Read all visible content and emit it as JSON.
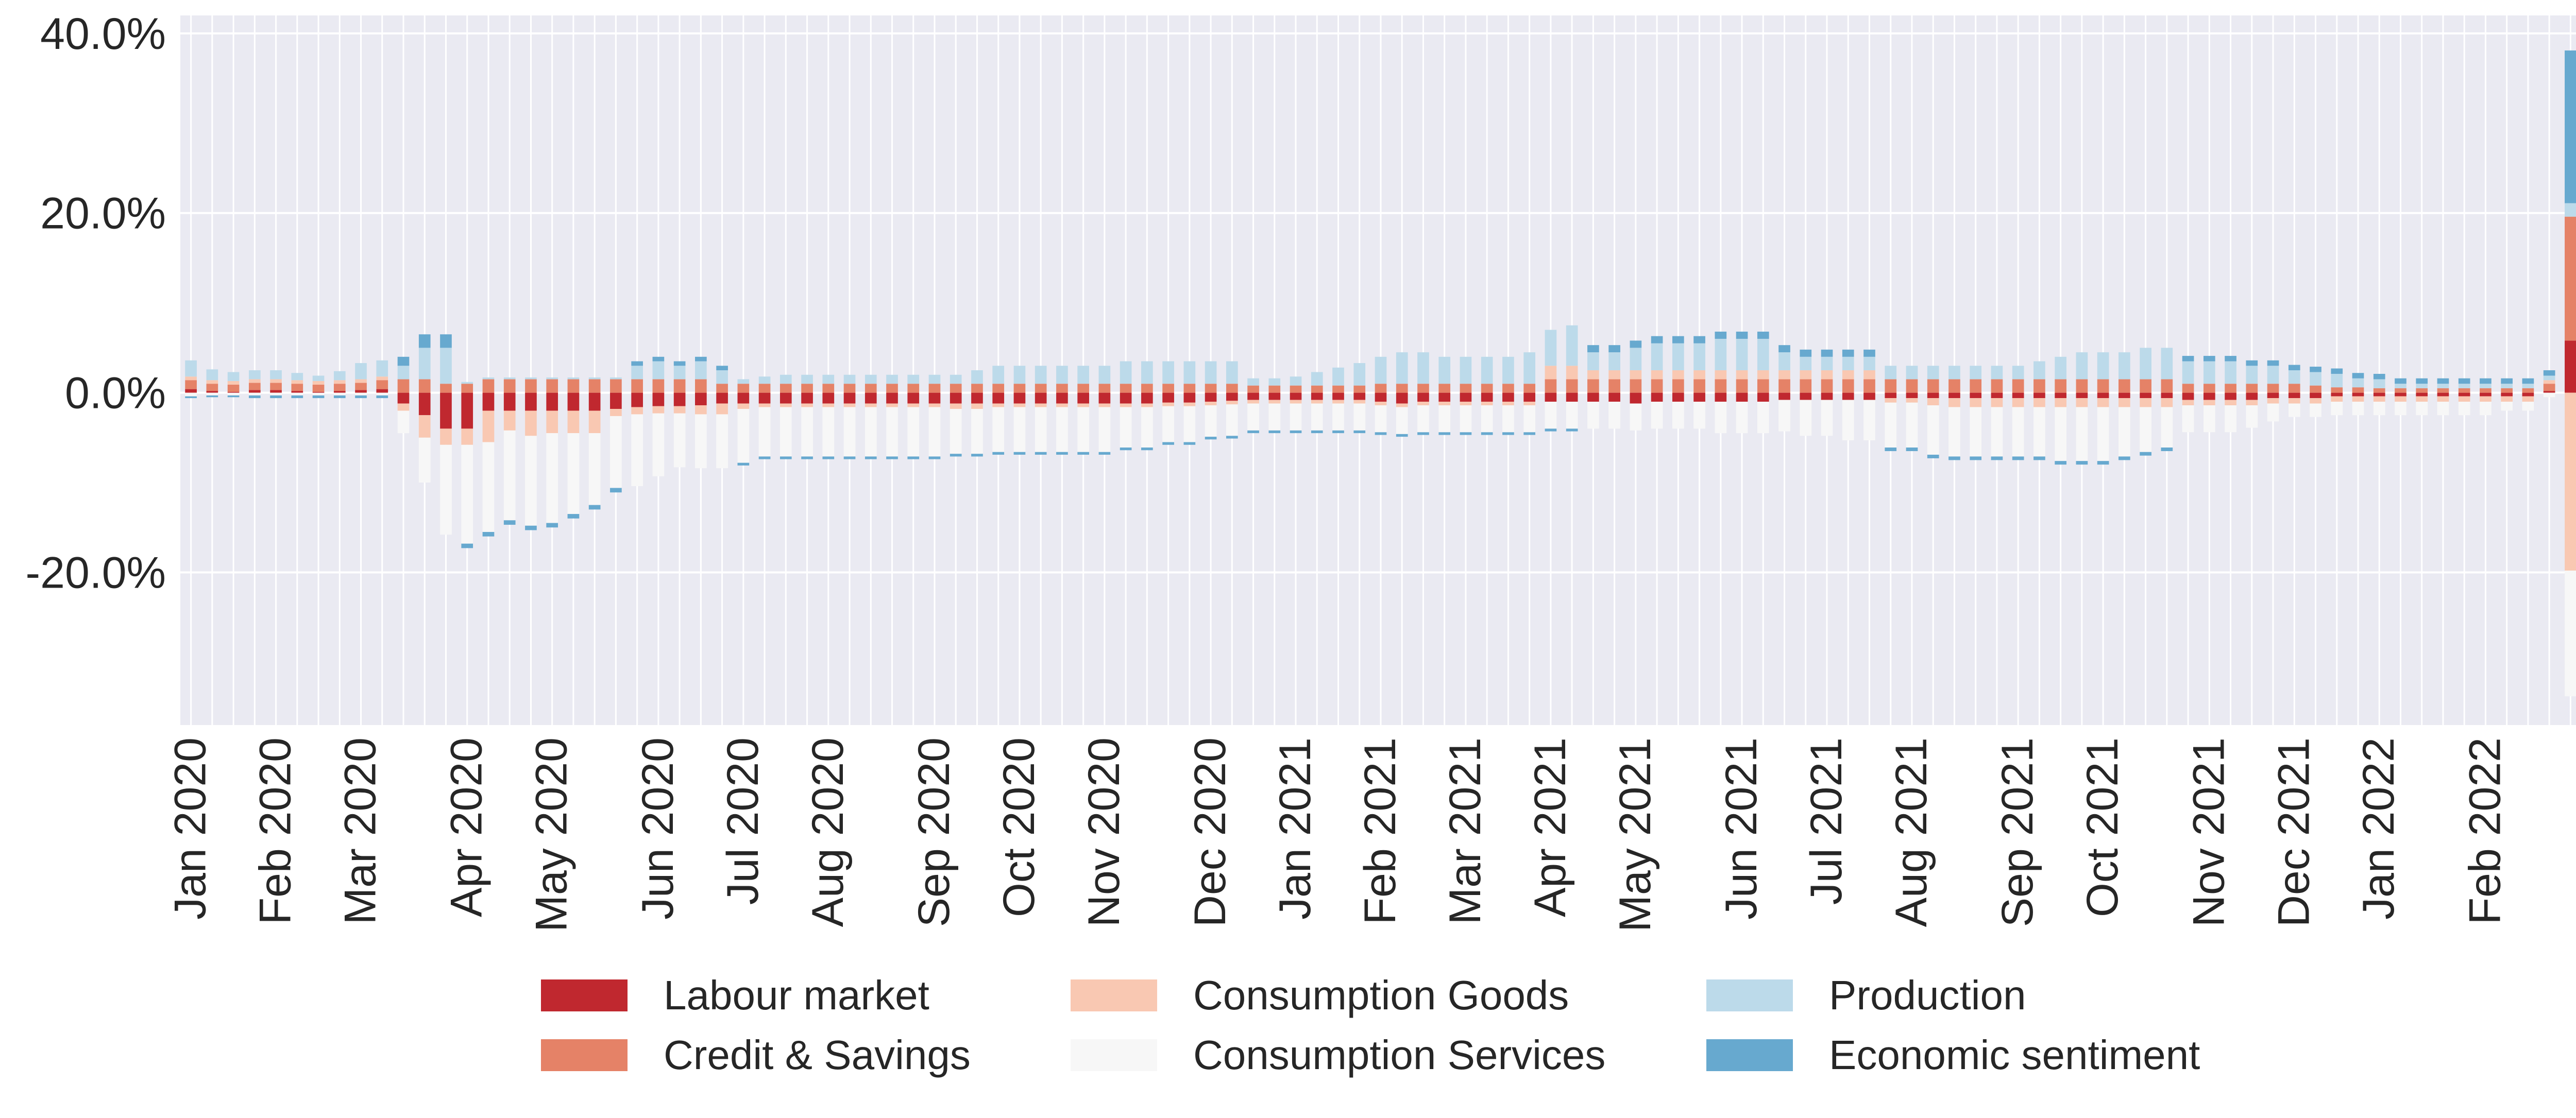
{
  "chart_data": {
    "type": "bar",
    "stacked": true,
    "title": "",
    "xlabel": "",
    "ylabel": "",
    "ylim": [
      -37,
      42
    ],
    "yticks": [
      -20,
      0,
      20,
      40
    ],
    "ytick_labels": [
      "-20.0%",
      "0.0%",
      "20.0%",
      "40.0%"
    ],
    "grid": true,
    "legend_position": "bottom",
    "period_labels": [
      "Jan 2020",
      "Feb 2020",
      "Mar 2020",
      "Apr 2020",
      "May 2020",
      "Jun 2020",
      "Jul 2020",
      "Aug 2020",
      "Sep 2020",
      "Oct 2020",
      "Nov 2020",
      "Dec 2020",
      "Jan 2021",
      "Feb 2021",
      "Mar 2021",
      "Apr 2021",
      "May 2021",
      "Jun 2021",
      "Jul 2021",
      "Aug 2021",
      "Sep 2021",
      "Oct 2021",
      "Nov 2021",
      "Dec 2021",
      "Jan 2022",
      "Feb 2022"
    ],
    "period_start_index": [
      0,
      4,
      8,
      13,
      17,
      22,
      26,
      30,
      35,
      39,
      43,
      48,
      52,
      56,
      60,
      64,
      68,
      73,
      77,
      81,
      86,
      90,
      95,
      99,
      103,
      108
    ],
    "series": [
      {
        "name": "Labour market",
        "color": "#c0282f",
        "values": [
          0.4,
          0.2,
          0.1,
          0.3,
          0.3,
          0.2,
          0.1,
          0.2,
          0.3,
          0.4,
          -1.2,
          -2.5,
          -4.0,
          -4.0,
          -2.0,
          -2.0,
          -2.0,
          -2.0,
          -2.0,
          -2.0,
          -1.8,
          -1.6,
          -1.5,
          -1.5,
          -1.4,
          -1.2,
          -1.2,
          -1.2,
          -1.2,
          -1.2,
          -1.2,
          -1.2,
          -1.2,
          -1.2,
          -1.2,
          -1.2,
          -1.2,
          -1.2,
          -1.2,
          -1.2,
          -1.2,
          -1.2,
          -1.2,
          -1.2,
          -1.2,
          -1.2,
          -1.1,
          -1.1,
          -1.0,
          -0.9,
          -0.8,
          -0.8,
          -0.8,
          -0.8,
          -0.8,
          -0.8,
          -1.0,
          -1.2,
          -1.0,
          -1.0,
          -1.0,
          -1.0,
          -1.0,
          -1.0,
          -1.0,
          -1.0,
          -1.0,
          -1.0,
          -1.2,
          -1.0,
          -1.0,
          -1.0,
          -1.0,
          -1.0,
          -1.0,
          -0.8,
          -0.8,
          -0.8,
          -0.8,
          -0.8,
          -0.6,
          -0.6,
          -0.6,
          -0.6,
          -0.6,
          -0.6,
          -0.6,
          -0.6,
          -0.6,
          -0.6,
          -0.6,
          -0.6,
          -0.6,
          -0.6,
          -0.8,
          -0.8,
          -0.8,
          -0.8,
          -0.6,
          -0.6,
          -0.6,
          -0.4,
          -0.4,
          -0.4,
          -0.4,
          -0.4,
          -0.4,
          -0.4,
          -0.4,
          -0.4,
          -0.4,
          0.2,
          5.8
        ]
      },
      {
        "name": "Credit & Savings",
        "color": "#e58267",
        "values": [
          1.0,
          0.8,
          0.8,
          0.8,
          0.8,
          0.8,
          0.8,
          0.8,
          0.8,
          1.0,
          1.5,
          1.5,
          1.0,
          1.0,
          1.5,
          1.5,
          1.5,
          1.5,
          1.5,
          1.5,
          1.5,
          1.5,
          1.5,
          1.5,
          1.5,
          1.0,
          1.0,
          1.0,
          1.0,
          1.0,
          1.0,
          1.0,
          1.0,
          1.0,
          1.0,
          1.0,
          1.0,
          1.0,
          1.0,
          1.0,
          1.0,
          1.0,
          1.0,
          1.0,
          1.0,
          1.0,
          1.0,
          1.0,
          1.0,
          1.0,
          0.8,
          0.8,
          0.8,
          0.8,
          0.8,
          0.8,
          1.0,
          1.0,
          1.0,
          1.0,
          1.0,
          1.0,
          1.0,
          1.0,
          1.5,
          1.5,
          1.5,
          1.5,
          1.5,
          1.5,
          1.5,
          1.5,
          1.5,
          1.5,
          1.5,
          1.5,
          1.5,
          1.5,
          1.5,
          1.5,
          1.5,
          1.5,
          1.5,
          1.5,
          1.5,
          1.5,
          1.5,
          1.5,
          1.5,
          1.5,
          1.5,
          1.5,
          1.5,
          1.5,
          1.0,
          1.0,
          1.0,
          1.0,
          1.0,
          1.0,
          0.8,
          0.6,
          0.6,
          0.5,
          0.5,
          0.5,
          0.5,
          0.5,
          0.5,
          0.5,
          0.5,
          0.8,
          13.8
        ]
      },
      {
        "name": "Consumption Goods",
        "color": "#f9c8b2",
        "values": [
          0.4,
          0.4,
          0.4,
          0.4,
          0.4,
          0.4,
          0.4,
          0.4,
          0.4,
          0.4,
          -0.8,
          -2.5,
          -1.8,
          -1.8,
          -3.5,
          -2.2,
          -2.8,
          -2.5,
          -2.5,
          -2.5,
          -0.8,
          -0.8,
          -0.8,
          -0.8,
          -1.0,
          -1.2,
          -0.6,
          -0.4,
          -0.4,
          -0.4,
          -0.4,
          -0.4,
          -0.4,
          -0.4,
          -0.4,
          -0.4,
          -0.6,
          -0.6,
          -0.4,
          -0.4,
          -0.4,
          -0.4,
          -0.4,
          -0.4,
          -0.4,
          -0.4,
          -0.4,
          -0.4,
          -0.4,
          -0.4,
          -0.4,
          -0.4,
          -0.4,
          -0.4,
          -0.4,
          -0.4,
          -0.4,
          -0.4,
          -0.4,
          -0.4,
          -0.4,
          -0.4,
          -0.4,
          -0.4,
          1.5,
          1.5,
          1.0,
          1.0,
          1.0,
          1.0,
          1.0,
          1.0,
          1.0,
          1.0,
          1.0,
          1.0,
          1.0,
          1.0,
          1.0,
          1.0,
          -0.5,
          -0.5,
          -0.8,
          -1.0,
          -1.0,
          -1.0,
          -1.0,
          -1.0,
          -1.0,
          -1.0,
          -1.0,
          -1.0,
          -1.0,
          -1.0,
          -0.6,
          -0.6,
          -0.6,
          -0.6,
          -0.6,
          -0.6,
          -0.6,
          -0.6,
          -0.6,
          -0.6,
          -0.6,
          -0.6,
          -0.6,
          -0.6,
          -0.6,
          -0.6,
          -0.6,
          0.4,
          -19.8
        ]
      },
      {
        "name": "Consumption Services",
        "color": "#f7f7f7",
        "values": [
          -0.4,
          -0.3,
          -0.3,
          -0.3,
          -0.3,
          -0.3,
          -0.3,
          -0.3,
          -0.3,
          -0.3,
          -2.5,
          -5.0,
          -10.0,
          -11.0,
          -10.0,
          -10.0,
          -10.0,
          -10.0,
          -9.0,
          -8.0,
          -8.0,
          -8.0,
          -7.0,
          -6.0,
          -6.0,
          -6.0,
          -6.0,
          -5.5,
          -5.5,
          -5.5,
          -5.5,
          -5.5,
          -5.5,
          -5.5,
          -5.5,
          -5.5,
          -5.0,
          -5.0,
          -5.0,
          -5.0,
          -5.0,
          -5.0,
          -5.0,
          -5.0,
          -4.5,
          -4.5,
          -4.0,
          -4.0,
          -3.5,
          -3.5,
          -3.0,
          -3.0,
          -3.0,
          -3.0,
          -3.0,
          -3.0,
          -3.0,
          -3.0,
          -3.0,
          -3.0,
          -3.0,
          -3.0,
          -3.0,
          -3.0,
          -3.0,
          -3.0,
          -3.0,
          -3.0,
          -3.0,
          -3.0,
          -3.0,
          -3.0,
          -3.5,
          -3.5,
          -3.5,
          -3.5,
          -4.0,
          -4.0,
          -4.5,
          -4.5,
          -5.0,
          -5.0,
          -5.5,
          -5.5,
          -5.5,
          -5.5,
          -5.5,
          -5.5,
          -6.0,
          -6.0,
          -6.0,
          -5.5,
          -5.0,
          -4.5,
          -3.0,
          -3.0,
          -3.0,
          -2.5,
          -2.0,
          -1.5,
          -1.5,
          -1.5,
          -1.5,
          -1.5,
          -1.5,
          -1.5,
          -1.5,
          -1.5,
          -1.5,
          -1.0,
          -1.0,
          -0.5,
          -14.0
        ]
      },
      {
        "name": "Production",
        "color": "#bcdaea",
        "values": [
          1.8,
          1.2,
          1.0,
          1.0,
          1.0,
          0.8,
          0.6,
          1.0,
          1.8,
          1.8,
          1.5,
          3.5,
          4.0,
          0.2,
          0.2,
          0.2,
          0.2,
          0.2,
          0.2,
          0.2,
          0.2,
          1.5,
          2.0,
          1.5,
          2.0,
          1.5,
          0.5,
          0.8,
          1.0,
          1.0,
          1.0,
          1.0,
          1.0,
          1.0,
          1.0,
          1.0,
          1.0,
          1.5,
          2.0,
          2.0,
          2.0,
          2.0,
          2.0,
          2.0,
          2.5,
          2.5,
          2.5,
          2.5,
          2.5,
          2.5,
          0.8,
          0.8,
          1.0,
          1.5,
          2.0,
          2.5,
          3.0,
          3.5,
          3.5,
          3.0,
          3.0,
          3.0,
          3.0,
          3.5,
          4.0,
          4.5,
          2.0,
          2.0,
          2.5,
          3.0,
          3.0,
          3.0,
          3.5,
          3.5,
          3.5,
          2.0,
          1.5,
          1.5,
          1.5,
          1.5,
          1.5,
          1.5,
          1.5,
          1.5,
          1.5,
          1.5,
          1.5,
          2.0,
          2.5,
          3.0,
          3.0,
          3.0,
          3.5,
          3.5,
          2.5,
          2.5,
          2.5,
          2.0,
          2.0,
          1.5,
          1.5,
          1.5,
          1.0,
          1.0,
          0.5,
          0.5,
          0.5,
          0.5,
          0.5,
          0.5,
          0.5,
          0.5,
          1.5
        ]
      },
      {
        "name": "Economic sentiment",
        "color": "#67a9cf",
        "values": [
          -0.2,
          -0.2,
          -0.2,
          -0.3,
          -0.3,
          -0.3,
          -0.3,
          -0.3,
          -0.3,
          -0.3,
          1.0,
          1.5,
          1.5,
          -0.5,
          -0.5,
          -0.5,
          -0.5,
          -0.5,
          -0.5,
          -0.5,
          -0.5,
          0.5,
          0.5,
          0.5,
          0.5,
          0.5,
          -0.3,
          -0.3,
          -0.3,
          -0.3,
          -0.3,
          -0.3,
          -0.3,
          -0.3,
          -0.3,
          -0.3,
          -0.3,
          -0.3,
          -0.3,
          -0.3,
          -0.3,
          -0.3,
          -0.3,
          -0.3,
          -0.3,
          -0.3,
          -0.3,
          -0.3,
          -0.3,
          -0.3,
          -0.3,
          -0.3,
          -0.3,
          -0.3,
          -0.3,
          -0.3,
          -0.3,
          -0.3,
          -0.3,
          -0.3,
          -0.3,
          -0.3,
          -0.3,
          -0.3,
          -0.3,
          -0.3,
          0.8,
          0.8,
          0.8,
          0.8,
          0.8,
          0.8,
          0.8,
          0.8,
          0.8,
          0.8,
          0.8,
          0.8,
          0.8,
          0.8,
          -0.4,
          -0.4,
          -0.4,
          -0.4,
          -0.4,
          -0.4,
          -0.4,
          -0.4,
          -0.4,
          -0.4,
          -0.4,
          -0.4,
          -0.4,
          -0.4,
          0.6,
          0.6,
          0.6,
          0.6,
          0.6,
          0.6,
          0.6,
          0.6,
          0.6,
          0.6,
          0.6,
          0.6,
          0.6,
          0.6,
          0.6,
          0.6,
          0.6,
          0.6,
          17.0
        ]
      }
    ]
  }
}
